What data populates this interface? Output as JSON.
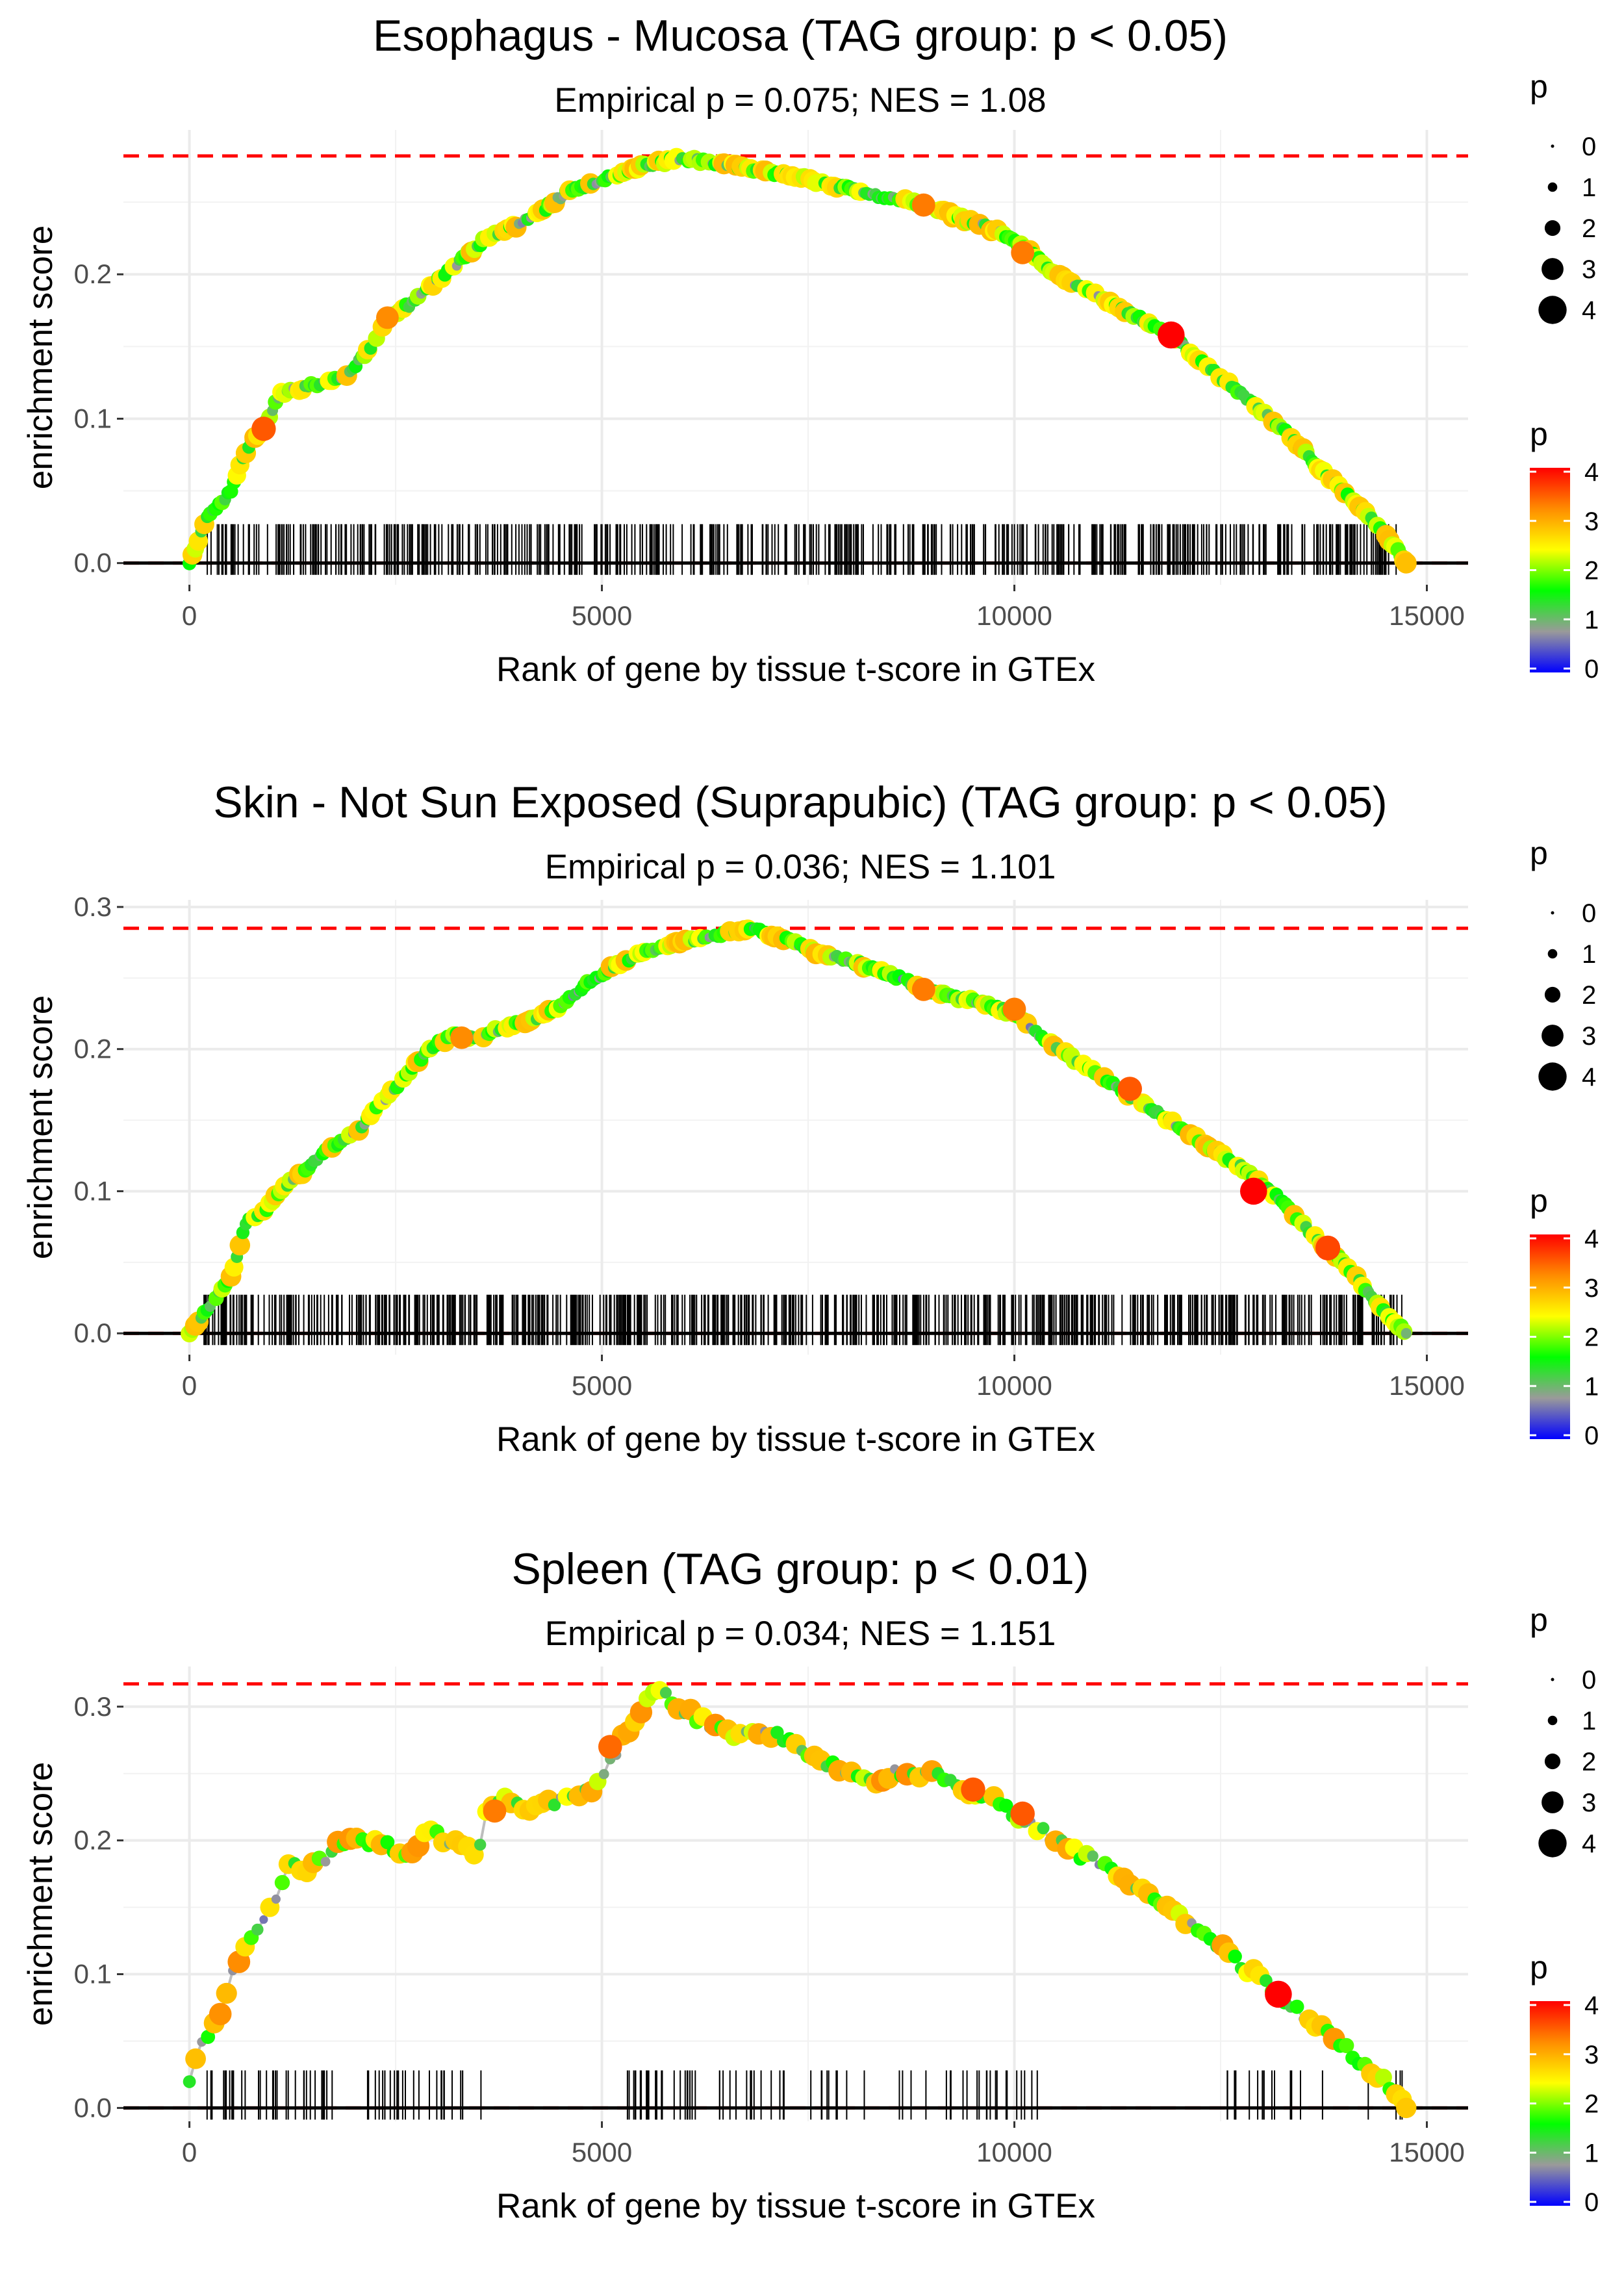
{
  "chart_data": [
    {
      "type": "line",
      "title": "Esophagus - Mucosa (TAG group: p < 0.05)",
      "subtitle": "Empirical p = 0.075; NES = 1.08",
      "xlabel": "Rank of gene by tissue t-score in GTEx",
      "ylabel": "enrichment score",
      "xlim": [
        -800,
        15500
      ],
      "ylim": [
        -0.015,
        0.3
      ],
      "xticks": [
        0,
        5000,
        10000,
        15000
      ],
      "xtick_labels": [
        "0",
        "5000",
        "10000",
        "15000"
      ],
      "yticks": [
        0.0,
        0.1,
        0.2
      ],
      "ytick_labels": [
        "0.0",
        "0.1",
        "0.2"
      ],
      "max_es": 0.282,
      "rug_density": "dense",
      "series": [
        {
          "name": "running enrichment score",
          "x": [
            0,
            200,
            500,
            700,
            900,
            1000,
            1100,
            1300,
            1600,
            1900,
            2200,
            2400,
            2700,
            3000,
            3300,
            3600,
            4000,
            4300,
            4600,
            5000,
            5500,
            5900,
            6300,
            6800,
            7300,
            7800,
            8300,
            8800,
            9300,
            9800,
            10200,
            10500,
            11000,
            11500,
            11900,
            12300,
            12800,
            13300,
            13800,
            14200,
            14500,
            14750
          ],
          "y": [
            0.0,
            0.03,
            0.05,
            0.08,
            0.095,
            0.105,
            0.118,
            0.12,
            0.125,
            0.13,
            0.15,
            0.17,
            0.18,
            0.195,
            0.21,
            0.225,
            0.235,
            0.245,
            0.258,
            0.265,
            0.275,
            0.28,
            0.278,
            0.273,
            0.268,
            0.262,
            0.255,
            0.25,
            0.24,
            0.23,
            0.215,
            0.2,
            0.185,
            0.17,
            0.158,
            0.138,
            0.115,
            0.09,
            0.06,
            0.038,
            0.02,
            0.0
          ],
          "highlight": [
            {
              "x": 900,
              "y": 0.093,
              "p": 3.5
            },
            {
              "x": 2400,
              "y": 0.17,
              "p": 3.2
            },
            {
              "x": 8900,
              "y": 0.248,
              "p": 3.3
            },
            {
              "x": 10100,
              "y": 0.215,
              "p": 3.3
            },
            {
              "x": 11900,
              "y": 0.158,
              "p": 4.0
            }
          ]
        }
      ]
    },
    {
      "type": "line",
      "title": "Skin - Not Sun Exposed (Suprapubic) (TAG group: p < 0.05)",
      "subtitle": "Empirical p = 0.036; NES = 1.101",
      "xlabel": "Rank of gene by tissue t-score in GTEx",
      "ylabel": "enrichment score",
      "xlim": [
        -800,
        15500
      ],
      "ylim": [
        -0.015,
        0.305
      ],
      "xticks": [
        0,
        5000,
        10000,
        15000
      ],
      "xtick_labels": [
        "0",
        "5000",
        "10000",
        "15000"
      ],
      "yticks": [
        0.0,
        0.1,
        0.2,
        0.3
      ],
      "ytick_labels": [
        "0.0",
        "0.1",
        "0.2",
        "0.3"
      ],
      "max_es": 0.285,
      "rug_density": "very dense",
      "series": [
        {
          "name": "running enrichment score",
          "x": [
            0,
            250,
            500,
            600,
            700,
            900,
            1100,
            1400,
            1700,
            2000,
            2300,
            2600,
            2900,
            3200,
            3500,
            3800,
            4200,
            4500,
            4800,
            5200,
            5600,
            6000,
            6400,
            6800,
            7200,
            7600,
            8000,
            8400,
            8800,
            9200,
            9600,
            10000,
            10400,
            10800,
            11200,
            11600,
            12000,
            12400,
            12800,
            13200,
            13600,
            14000,
            14400,
            14750
          ],
          "y": [
            0.0,
            0.02,
            0.04,
            0.06,
            0.08,
            0.085,
            0.1,
            0.115,
            0.13,
            0.14,
            0.16,
            0.18,
            0.2,
            0.21,
            0.208,
            0.215,
            0.222,
            0.23,
            0.245,
            0.26,
            0.27,
            0.276,
            0.28,
            0.285,
            0.278,
            0.268,
            0.262,
            0.255,
            0.245,
            0.238,
            0.232,
            0.225,
            0.205,
            0.19,
            0.175,
            0.16,
            0.145,
            0.13,
            0.115,
            0.095,
            0.07,
            0.05,
            0.02,
            0.0
          ],
          "highlight": [
            {
              "x": 3300,
              "y": 0.208,
              "p": 3.2
            },
            {
              "x": 8900,
              "y": 0.242,
              "p": 3.3
            },
            {
              "x": 10000,
              "y": 0.228,
              "p": 3.3
            },
            {
              "x": 11400,
              "y": 0.172,
              "p": 3.5
            },
            {
              "x": 12900,
              "y": 0.1,
              "p": 4.0
            },
            {
              "x": 13800,
              "y": 0.06,
              "p": 3.6
            }
          ]
        }
      ]
    },
    {
      "type": "line",
      "title": "Spleen (TAG group: p < 0.01)",
      "subtitle": "Empirical p = 0.034; NES = 1.151",
      "xlabel": "Rank of gene by tissue t-score in GTEx",
      "ylabel": "enrichment score",
      "xlim": [
        -800,
        15500
      ],
      "ylim": [
        -0.01,
        0.33
      ],
      "xticks": [
        0,
        5000,
        10000,
        15000
      ],
      "xtick_labels": [
        "0",
        "5000",
        "10000",
        "15000"
      ],
      "yticks": [
        0.0,
        0.1,
        0.2,
        0.3
      ],
      "ytick_labels": [
        "0.0",
        "0.1",
        "0.2",
        "0.3"
      ],
      "max_es": 0.317,
      "rug_density": "sparse",
      "series": [
        {
          "name": "running enrichment score",
          "x": [
            0,
            100,
            250,
            400,
            500,
            700,
            850,
            1000,
            1200,
            1500,
            1800,
            2000,
            2300,
            2600,
            2900,
            3200,
            3500,
            3600,
            3800,
            4100,
            4400,
            4700,
            4900,
            5000,
            5200,
            5400,
            5650,
            5800,
            6200,
            6600,
            7000,
            7400,
            7800,
            8200,
            8600,
            9000,
            9300,
            9600,
            10000,
            10400,
            10800,
            11200,
            11600,
            12000,
            12400,
            12800,
            13200,
            13600,
            14000,
            14400,
            14750
          ],
          "y": [
            0.02,
            0.045,
            0.055,
            0.07,
            0.1,
            0.12,
            0.135,
            0.15,
            0.18,
            0.18,
            0.195,
            0.2,
            0.2,
            0.19,
            0.205,
            0.2,
            0.19,
            0.22,
            0.235,
            0.22,
            0.23,
            0.23,
            0.24,
            0.245,
            0.27,
            0.29,
            0.317,
            0.305,
            0.29,
            0.28,
            0.28,
            0.27,
            0.255,
            0.245,
            0.25,
            0.25,
            0.24,
            0.235,
            0.22,
            0.205,
            0.19,
            0.175,
            0.16,
            0.145,
            0.125,
            0.105,
            0.085,
            0.065,
            0.045,
            0.025,
            0.0
          ],
          "highlight": [
            {
              "x": 3700,
              "y": 0.222,
              "p": 3.3
            },
            {
              "x": 5100,
              "y": 0.27,
              "p": 3.4
            },
            {
              "x": 9500,
              "y": 0.238,
              "p": 3.5
            },
            {
              "x": 10100,
              "y": 0.22,
              "p": 3.5
            },
            {
              "x": 13200,
              "y": 0.085,
              "p": 4.0
            }
          ]
        }
      ]
    }
  ],
  "legends": {
    "size_title": "p",
    "size_labels": [
      "0",
      "1",
      "2",
      "3",
      "4"
    ],
    "color_title": "p",
    "color_labels": [
      "0",
      "1",
      "2",
      "3",
      "4"
    ],
    "gradient_colors": [
      "#0000ff",
      "#9a9a9a",
      "#00ff00",
      "#ffff00",
      "#ff8c00",
      "#ff0000"
    ]
  },
  "colors": {
    "max_line": "#ff0000",
    "baseline": "#000000",
    "grid": "#ebebeb",
    "path_line": "#bdbdbd"
  }
}
